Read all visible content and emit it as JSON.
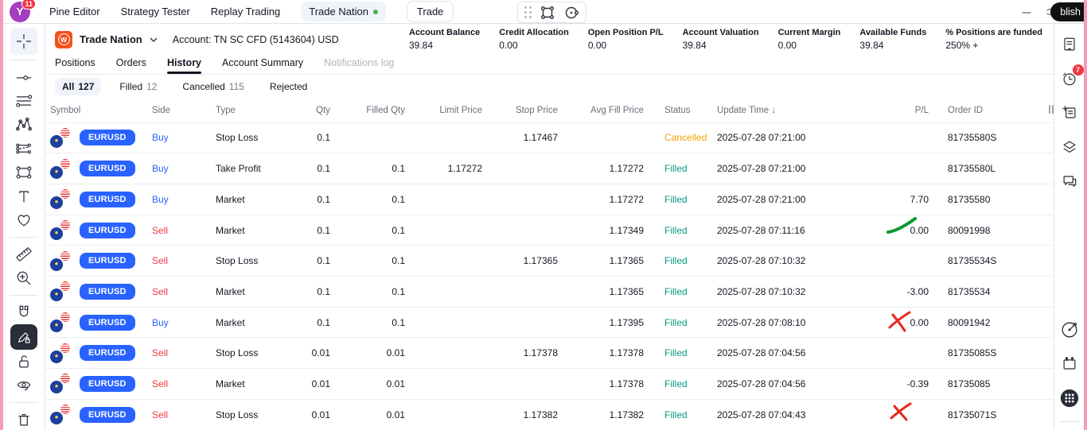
{
  "topbar": {
    "avatar": {
      "initial": "Y",
      "badge": "11"
    },
    "tabs": [
      {
        "label": "Pine Editor",
        "style": "plain"
      },
      {
        "label": "Strategy Tester",
        "style": "plain"
      },
      {
        "label": "Replay Trading",
        "style": "plain"
      },
      {
        "label": "Trade Nation",
        "style": "active-pill",
        "green_dot": true
      },
      {
        "label": "Trade",
        "style": "outline-pill"
      }
    ],
    "publish_label": "blish"
  },
  "broker": {
    "name": "Trade Nation",
    "account_label": "Account: TN SC CFD (5143604) USD",
    "metrics": [
      {
        "label": "Account Balance",
        "value": "39.84"
      },
      {
        "label": "Credit Allocation",
        "value": "0.00"
      },
      {
        "label": "Open Position P/L",
        "value": "0.00"
      },
      {
        "label": "Account Valuation",
        "value": "39.84"
      },
      {
        "label": "Current Margin",
        "value": "0.00"
      },
      {
        "label": "Available Funds",
        "value": "39.84"
      },
      {
        "label": "% Positions are funded",
        "value": "250% +"
      }
    ]
  },
  "panel_tabs": [
    {
      "label": "Positions",
      "state": "normal"
    },
    {
      "label": "Orders",
      "state": "normal"
    },
    {
      "label": "History",
      "state": "active"
    },
    {
      "label": "Account Summary",
      "state": "normal"
    },
    {
      "label": "Notifications log",
      "state": "muted"
    }
  ],
  "filters": [
    {
      "label": "All",
      "count": "127",
      "active": true
    },
    {
      "label": "Filled",
      "count": "12",
      "active": false
    },
    {
      "label": "Cancelled",
      "count": "115",
      "active": false
    },
    {
      "label": "Rejected",
      "count": "",
      "active": false
    }
  ],
  "table": {
    "columns": [
      "Symbol",
      "Side",
      "Type",
      "Qty",
      "Filled Qty",
      "Limit Price",
      "Stop Price",
      "Avg Fill Price",
      "Status",
      "Update Time ↓",
      "P/L",
      "Order ID"
    ],
    "rows": [
      {
        "symbol": "EURUSD",
        "side": "Buy",
        "type": "Stop Loss",
        "qty": "0.1",
        "filled_qty": "",
        "limit_price": "",
        "stop_price": "1.17467",
        "avg_fill_price": "",
        "status": "Cancelled",
        "update_time": "2025-07-28 07:21:00",
        "pl": "",
        "order_id": "81735580S"
      },
      {
        "symbol": "EURUSD",
        "side": "Buy",
        "type": "Take Profit",
        "qty": "0.1",
        "filled_qty": "0.1",
        "limit_price": "1.17272",
        "stop_price": "",
        "avg_fill_price": "1.17272",
        "status": "Filled",
        "update_time": "2025-07-28 07:21:00",
        "pl": "",
        "order_id": "81735580L"
      },
      {
        "symbol": "EURUSD",
        "side": "Buy",
        "type": "Market",
        "qty": "0.1",
        "filled_qty": "0.1",
        "limit_price": "",
        "stop_price": "",
        "avg_fill_price": "1.17272",
        "status": "Filled",
        "update_time": "2025-07-28 07:21:00",
        "pl": "7.70",
        "order_id": "81735580"
      },
      {
        "symbol": "EURUSD",
        "side": "Sell",
        "type": "Market",
        "qty": "0.1",
        "filled_qty": "0.1",
        "limit_price": "",
        "stop_price": "",
        "avg_fill_price": "1.17349",
        "status": "Filled",
        "update_time": "2025-07-28 07:11:16",
        "pl": "0.00",
        "order_id": "80091998"
      },
      {
        "symbol": "EURUSD",
        "side": "Sell",
        "type": "Stop Loss",
        "qty": "0.1",
        "filled_qty": "0.1",
        "limit_price": "",
        "stop_price": "1.17365",
        "avg_fill_price": "1.17365",
        "status": "Filled",
        "update_time": "2025-07-28 07:10:32",
        "pl": "",
        "order_id": "81735534S"
      },
      {
        "symbol": "EURUSD",
        "side": "Sell",
        "type": "Market",
        "qty": "0.1",
        "filled_qty": "0.1",
        "limit_price": "",
        "stop_price": "",
        "avg_fill_price": "1.17365",
        "status": "Filled",
        "update_time": "2025-07-28 07:10:32",
        "pl": "-3.00",
        "order_id": "81735534"
      },
      {
        "symbol": "EURUSD",
        "side": "Buy",
        "type": "Market",
        "qty": "0.1",
        "filled_qty": "0.1",
        "limit_price": "",
        "stop_price": "",
        "avg_fill_price": "1.17395",
        "status": "Filled",
        "update_time": "2025-07-28 07:08:10",
        "pl": "0.00",
        "order_id": "80091942"
      },
      {
        "symbol": "EURUSD",
        "side": "Sell",
        "type": "Stop Loss",
        "qty": "0.01",
        "filled_qty": "0.01",
        "limit_price": "",
        "stop_price": "1.17378",
        "avg_fill_price": "1.17378",
        "status": "Filled",
        "update_time": "2025-07-28 07:04:56",
        "pl": "",
        "order_id": "81735085S"
      },
      {
        "symbol": "EURUSD",
        "side": "Sell",
        "type": "Market",
        "qty": "0.01",
        "filled_qty": "0.01",
        "limit_price": "",
        "stop_price": "",
        "avg_fill_price": "1.17378",
        "status": "Filled",
        "update_time": "2025-07-28 07:04:56",
        "pl": "-0.39",
        "order_id": "81735085"
      },
      {
        "symbol": "EURUSD",
        "side": "Sell",
        "type": "Stop Loss",
        "qty": "0.01",
        "filled_qty": "0.01",
        "limit_price": "",
        "stop_price": "1.17382",
        "avg_fill_price": "1.17382",
        "status": "Filled",
        "update_time": "2025-07-28 07:04:43",
        "pl": "",
        "order_id": "81735071S"
      }
    ]
  },
  "annotations": [
    {
      "kind": "green-swoosh",
      "row_ref": "7.70"
    },
    {
      "kind": "red-x",
      "row_ref": "-3.00"
    },
    {
      "kind": "red-x",
      "row_ref": "-0.39"
    }
  ],
  "colors": {
    "buy": "#2962ff",
    "sell": "#f23645",
    "filled": "#089981",
    "cancelled": "#f5a300",
    "symbol_pill": "#2962ff",
    "logo_orange": "#f4501e",
    "avatar_purple": "#a43ec1",
    "badge_red": "#f23645",
    "annotation_green": "#0b9a33",
    "annotation_red": "#e8271c",
    "edge_pink": "#f59bb8"
  }
}
